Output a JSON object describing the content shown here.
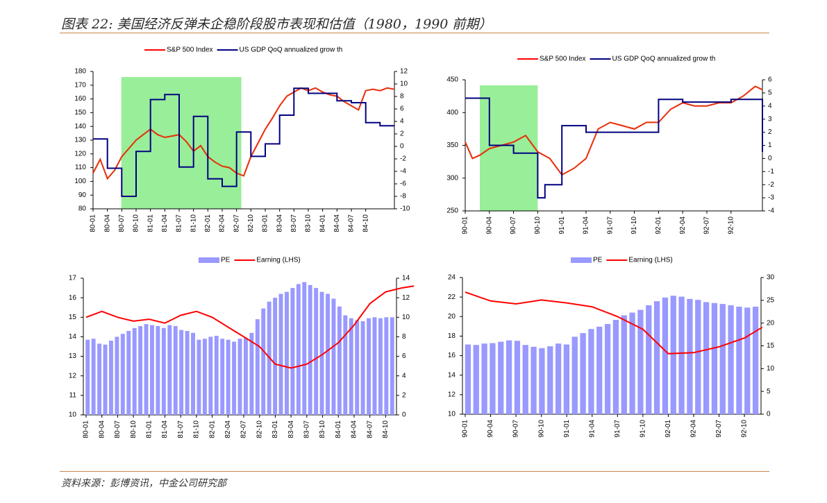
{
  "page": {
    "title": "图表 22:  美国经济反弹未企稳阶段股市表现和估值（1980，1990 前期）",
    "source": "资料来源：彭博资讯，中金公司研究部"
  },
  "colors": {
    "red": "#ff0000",
    "navy": "#000080",
    "shade": "#99ee99",
    "bars": "#9999ff",
    "gold": "#b8860b",
    "rule": "#c8864a"
  },
  "chart_data": [
    {
      "id": "sp500-gdp-1980s",
      "type": "line",
      "legend": [
        "S&P 500 Index",
        "US GDP QoQ annualized grow th"
      ],
      "x_ticks": [
        "80-01",
        "80-04",
        "80-07",
        "80-10",
        "81-01",
        "81-04",
        "81-07",
        "81-10",
        "82-01",
        "82-04",
        "82-07",
        "82-10",
        "83-01",
        "83-04",
        "83-07",
        "83-10",
        "84-01",
        "84-04",
        "84-07",
        "84-10"
      ],
      "x_range": [
        0,
        21
      ],
      "y_left": {
        "min": 80,
        "max": 180,
        "step": 10
      },
      "y_right": {
        "min": -10,
        "max": 12,
        "step": 2
      },
      "shaded_period": [
        "80-04",
        "82-08"
      ],
      "series_left_x": [
        0,
        0.5,
        1,
        1.5,
        2,
        2.5,
        3,
        3.5,
        4,
        4.5,
        5,
        5.5,
        6,
        6.5,
        7,
        7.5,
        8,
        8.5,
        9,
        9.5,
        10,
        10.5,
        11,
        11.5,
        12,
        12.5,
        13,
        13.5,
        14,
        14.5,
        15,
        15.5,
        16,
        16.5,
        17,
        17.5,
        18,
        18.5,
        19,
        19.5,
        20,
        20.5,
        21
      ],
      "series_left_y": [
        106,
        116,
        102,
        108,
        118,
        124,
        130,
        134,
        138,
        134,
        132,
        133,
        134,
        129,
        122,
        126,
        118,
        114,
        111,
        110,
        106,
        104,
        118,
        128,
        138,
        146,
        155,
        162,
        165,
        168,
        166,
        168,
        165,
        163,
        162,
        158,
        155,
        152,
        166,
        167,
        166,
        168,
        167
      ],
      "series_right_step_x": [
        0,
        1,
        2,
        3,
        4,
        5,
        6,
        7,
        8,
        9,
        10,
        11,
        12,
        13,
        14,
        15,
        16,
        17,
        18,
        19,
        20,
        21
      ],
      "series_right_step_y": [
        1.2,
        -3.5,
        -8,
        -0.8,
        7.5,
        8.3,
        -3.3,
        4.8,
        -5.2,
        -6.4,
        2.3,
        -1.6,
        0.4,
        5,
        9.3,
        8.5,
        8.5,
        7.3,
        7,
        3.8,
        3.3,
        3.3
      ]
    },
    {
      "id": "sp500-gdp-1990s",
      "type": "line",
      "legend": [
        "S&P 500 Index",
        "US GDP QoQ annualized grow th"
      ],
      "x_ticks": [
        "90-01",
        "90-04",
        "90-07",
        "90-10",
        "91-01",
        "91-04",
        "91-07",
        "91-10",
        "92-01",
        "92-04",
        "92-07",
        "92-10"
      ],
      "x_range": [
        0,
        12.3
      ],
      "y_left": {
        "min": 250,
        "max": 450,
        "step": 50
      },
      "y_right": {
        "min": -4,
        "max": 6,
        "step": 1
      },
      "shaded_period": [
        "90-01",
        "90-10"
      ],
      "series_left_x": [
        0,
        0.3,
        0.6,
        1,
        1.5,
        2,
        2.5,
        3,
        3.5,
        4,
        4.5,
        5,
        5.5,
        6,
        6.5,
        7,
        7.5,
        8,
        8.5,
        9,
        9.5,
        10,
        10.5,
        11,
        11.5,
        12,
        12.3
      ],
      "series_left_y": [
        355,
        330,
        335,
        345,
        350,
        355,
        365,
        340,
        330,
        305,
        315,
        330,
        375,
        385,
        380,
        375,
        385,
        385,
        405,
        415,
        410,
        410,
        415,
        415,
        425,
        440,
        435
      ],
      "series_right_step_x": [
        0,
        1,
        2,
        3,
        3.3,
        4,
        5,
        6,
        7,
        8,
        9,
        10,
        11,
        12,
        12.3
      ],
      "series_right_step_y": [
        4.6,
        1,
        0.4,
        -3,
        -2,
        2.5,
        2,
        2,
        2,
        4.5,
        4.3,
        4.3,
        4.5,
        4.5,
        0.5
      ]
    },
    {
      "id": "pe-earning-1980s",
      "type": "bar",
      "legend": [
        "PE",
        "Earning (LHS)"
      ],
      "x_ticks": [
        "80-01",
        "80-04",
        "80-07",
        "80-10",
        "81-01",
        "81-04",
        "81-07",
        "81-10",
        "82-01",
        "82-04",
        "82-07",
        "82-10",
        "83-01",
        "83-04",
        "83-07",
        "83-10",
        "84-01",
        "84-04",
        "84-07",
        "84-10"
      ],
      "y_left": {
        "min": 10,
        "max": 17,
        "step": 1
      },
      "y_right": {
        "min": 0,
        "max": 14,
        "step": 2
      },
      "pe_bars": [
        7.7,
        7.8,
        7.3,
        7.2,
        7.6,
        8,
        8.3,
        8.6,
        8.9,
        9.1,
        9.3,
        9.2,
        9.1,
        8.9,
        9.2,
        9.1,
        8.7,
        8.6,
        8.4,
        7.7,
        7.8,
        8,
        8.1,
        7.8,
        7.7,
        7.5,
        7.8,
        7.9,
        8.4,
        9.8,
        10.9,
        11.6,
        12,
        12.4,
        12.6,
        13,
        13.4,
        13.6,
        13.3,
        13,
        12.6,
        12.4,
        11.9,
        11.1,
        10.2,
        9.9,
        9.7,
        9.6,
        9.9,
        10,
        9.9,
        10,
        10
      ],
      "earning_x": [
        0,
        1,
        2,
        3,
        4,
        5,
        6,
        7,
        8,
        9,
        10,
        11,
        12,
        13,
        14,
        15,
        16,
        17,
        18,
        19,
        20,
        20.8
      ],
      "earning_y": [
        15,
        15.3,
        15,
        14.8,
        14.9,
        14.7,
        15.1,
        15.3,
        15,
        14.5,
        14,
        13.5,
        12.6,
        12.4,
        12.6,
        13.1,
        13.7,
        14.6,
        15.7,
        16.3,
        16.5,
        16.6
      ]
    },
    {
      "id": "pe-earning-1990s",
      "type": "bar",
      "legend": [
        "PE",
        "Earning (LHS)"
      ],
      "x_ticks": [
        "90-01",
        "90-04",
        "90-07",
        "90-10",
        "91-01",
        "91-04",
        "91-07",
        "91-10",
        "92-01",
        "92-04",
        "92-07",
        "92-10"
      ],
      "y_left": {
        "min": 10,
        "max": 24,
        "step": 2
      },
      "y_right": {
        "min": 0,
        "max": 30,
        "step": 5
      },
      "pe_bars": [
        15.3,
        15.2,
        15.5,
        15.6,
        15.9,
        16.2,
        16.1,
        15.2,
        14.8,
        14.5,
        14.9,
        15.5,
        15.3,
        17,
        17.8,
        18.7,
        19.2,
        19.8,
        20.7,
        21.7,
        22.3,
        22.9,
        23.9,
        24.8,
        25.6,
        26,
        25.8,
        25.3,
        25.1,
        24.6,
        24.4,
        24.2,
        23.9,
        23.6,
        23.4,
        23.6
      ],
      "earning_x": [
        0,
        1,
        2,
        3,
        4,
        5,
        6,
        7,
        8,
        9,
        10,
        11,
        11.7
      ],
      "earning_y": [
        22.5,
        21.6,
        21.3,
        21.7,
        21.4,
        21.0,
        20.0,
        18.7,
        16.2,
        16.3,
        16.9,
        17.8,
        18.9
      ]
    }
  ]
}
